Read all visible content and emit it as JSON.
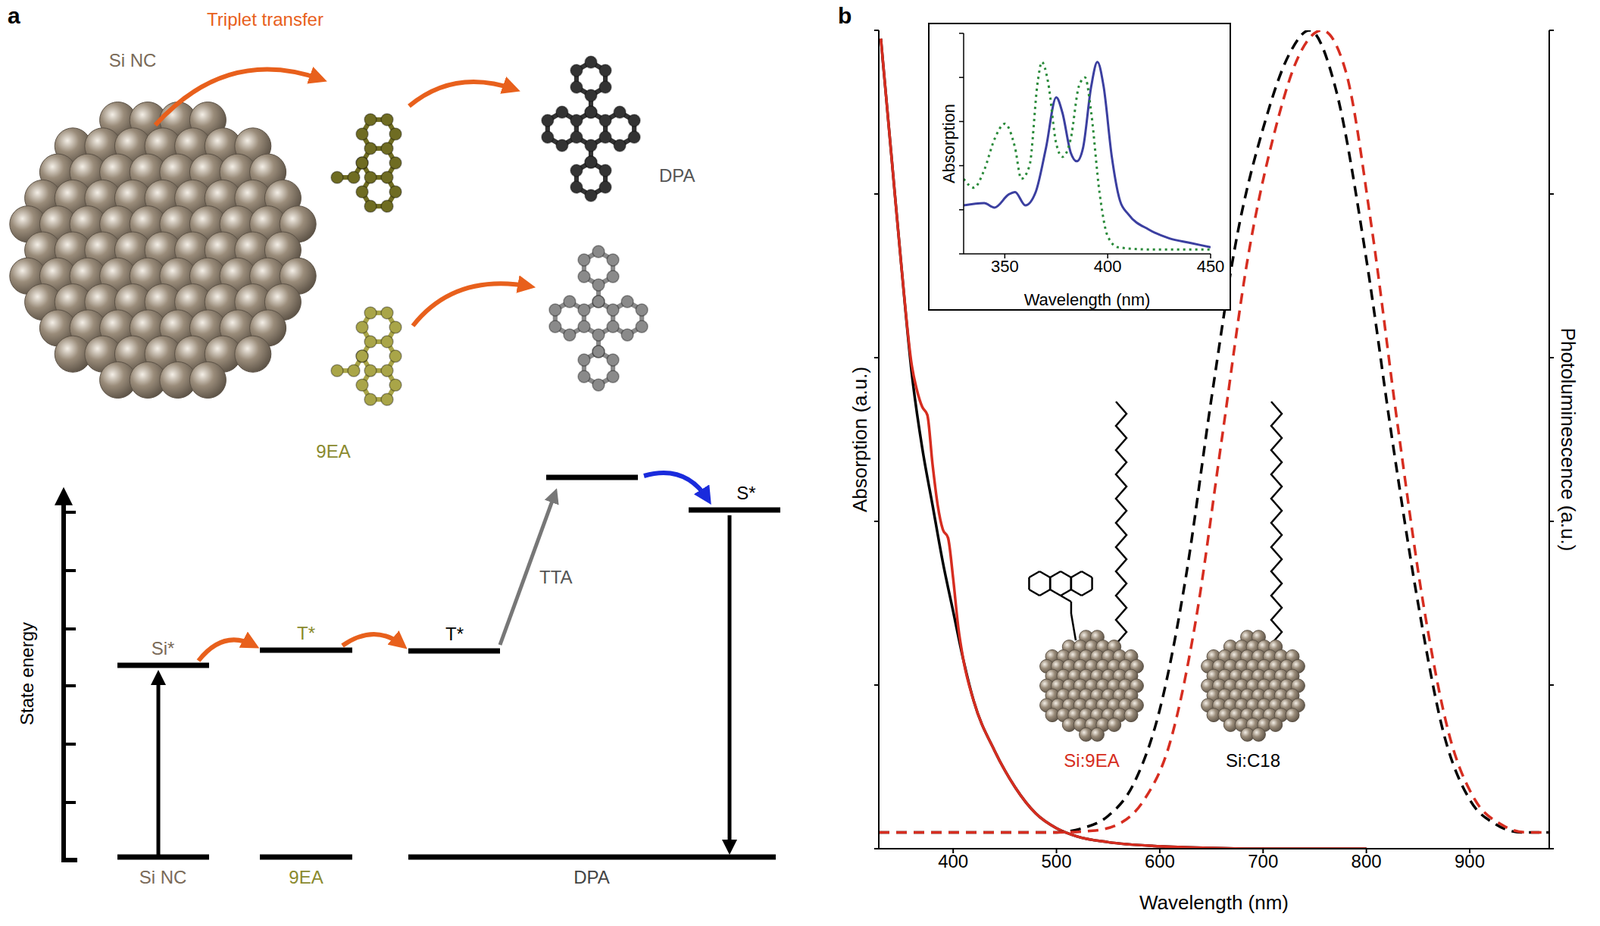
{
  "panel_labels": [
    "a",
    "b"
  ],
  "diagram": {
    "triplet_transfer": "Triplet transfer",
    "structures": {
      "nanocrystal": "Si NC",
      "ligand": "9EA",
      "annihilator": "DPA"
    },
    "energy_axis": "State energy",
    "columns": [
      {
        "name": "Si NC",
        "excited": "Si*"
      },
      {
        "name": "9EA",
        "excited": "T*"
      },
      {
        "name": "DPA",
        "excited": "T*",
        "upconverted": "S*",
        "process": "TTA"
      }
    ]
  },
  "chart_data": [
    {
      "type": "line",
      "x_label": "Wavelength (nm)",
      "y_label": "Absorption (a.u.)",
      "y2_label": "Photoluminescence (a.u.)",
      "xlim": [
        328,
        977
      ],
      "xticks": [
        400,
        500,
        600,
        700,
        800,
        900
      ],
      "ylim": [
        0,
        1
      ],
      "yticks": [
        0,
        0.2,
        0.4,
        0.6,
        0.8,
        1
      ],
      "y2lim": [
        0,
        1
      ],
      "y2ticks": [
        0,
        0.2,
        0.4,
        0.6,
        0.8,
        1
      ],
      "tick_labels": "x",
      "annotations": [
        "Si:9EA",
        "Si:C18"
      ],
      "series": [
        {
          "color": "#000000",
          "line_style": "solid",
          "x": [
            330,
            340,
            350,
            360,
            370,
            380,
            390,
            400,
            410,
            420,
            440,
            460,
            480,
            500,
            520,
            550,
            600,
            650,
            700,
            750,
            800
          ],
          "values": [
            0.99,
            0.85,
            0.71,
            0.58,
            0.49,
            0.42,
            0.35,
            0.29,
            0.23,
            0.18,
            0.12,
            0.075,
            0.043,
            0.025,
            0.015,
            0.008,
            0.003,
            0.001,
            0,
            0,
            0
          ]
        },
        {
          "color": "#d62d20",
          "line_style": "solid",
          "x": [
            330,
            340,
            350,
            360,
            365,
            370,
            375,
            380,
            385,
            390,
            395,
            400,
            405,
            410,
            420,
            440,
            460,
            480,
            500,
            520,
            550,
            600,
            650,
            700,
            750,
            800
          ],
          "values": [
            0.99,
            0.85,
            0.71,
            0.59,
            0.56,
            0.54,
            0.53,
            0.47,
            0.42,
            0.39,
            0.38,
            0.33,
            0.27,
            0.23,
            0.18,
            0.12,
            0.075,
            0.043,
            0.025,
            0.015,
            0.008,
            0.003,
            0.001,
            0,
            0,
            0
          ]
        },
        {
          "color": "#000000",
          "line_style": "dashed",
          "axis": "y2",
          "x": [
            328,
            400,
            500,
            525,
            550,
            575,
            600,
            625,
            650,
            675,
            700,
            725,
            745,
            770,
            800,
            825,
            850,
            875,
            900,
            925,
            950,
            977
          ],
          "values": [
            0.02,
            0.02,
            0.02,
            0.025,
            0.04,
            0.08,
            0.17,
            0.33,
            0.55,
            0.75,
            0.88,
            0.97,
            1.0,
            0.93,
            0.72,
            0.5,
            0.3,
            0.14,
            0.06,
            0.03,
            0.02,
            0.02
          ]
        },
        {
          "color": "#d62d20",
          "line_style": "dashed",
          "axis": "y2",
          "x": [
            328,
            400,
            500,
            535,
            560,
            585,
            610,
            635,
            660,
            685,
            710,
            735,
            757,
            780,
            805,
            830,
            855,
            880,
            905,
            930,
            955,
            977
          ],
          "values": [
            0.02,
            0.02,
            0.02,
            0.022,
            0.03,
            0.06,
            0.13,
            0.28,
            0.5,
            0.72,
            0.87,
            0.97,
            1.0,
            0.95,
            0.76,
            0.52,
            0.3,
            0.14,
            0.06,
            0.03,
            0.02,
            0.02
          ]
        }
      ]
    },
    {
      "type": "line",
      "x_label": "Wavelength (nm)",
      "y_label": "Absorption",
      "xlim": [
        330,
        450
      ],
      "xticks": [
        350,
        400,
        450
      ],
      "ylim": [
        0,
        1
      ],
      "yticks": [
        0,
        0.2,
        0.4,
        0.6,
        0.8,
        1
      ],
      "tick_labels": "x",
      "series": [
        {
          "color": "#3b3fa0",
          "line_style": "solid",
          "x": [
            330,
            340,
            345,
            352,
            355,
            360,
            365,
            370,
            375,
            378,
            382,
            385,
            388,
            392,
            395,
            398,
            402,
            406,
            410,
            420,
            430,
            440,
            450
          ],
          "values": [
            0.22,
            0.23,
            0.21,
            0.27,
            0.28,
            0.22,
            0.28,
            0.48,
            0.71,
            0.64,
            0.46,
            0.42,
            0.48,
            0.76,
            0.87,
            0.76,
            0.44,
            0.24,
            0.18,
            0.11,
            0.07,
            0.05,
            0.03
          ]
        },
        {
          "color": "#2a8a3a",
          "line_style": "dotted",
          "x": [
            330,
            335,
            340,
            345,
            350,
            355,
            358,
            362,
            366,
            368,
            371,
            375,
            378,
            382,
            386,
            389,
            392,
            396,
            400,
            405,
            420,
            450
          ],
          "values": [
            0.34,
            0.3,
            0.38,
            0.52,
            0.59,
            0.48,
            0.34,
            0.4,
            0.78,
            0.87,
            0.78,
            0.5,
            0.44,
            0.52,
            0.76,
            0.8,
            0.64,
            0.28,
            0.08,
            0.03,
            0.02,
            0.02
          ]
        }
      ]
    }
  ]
}
